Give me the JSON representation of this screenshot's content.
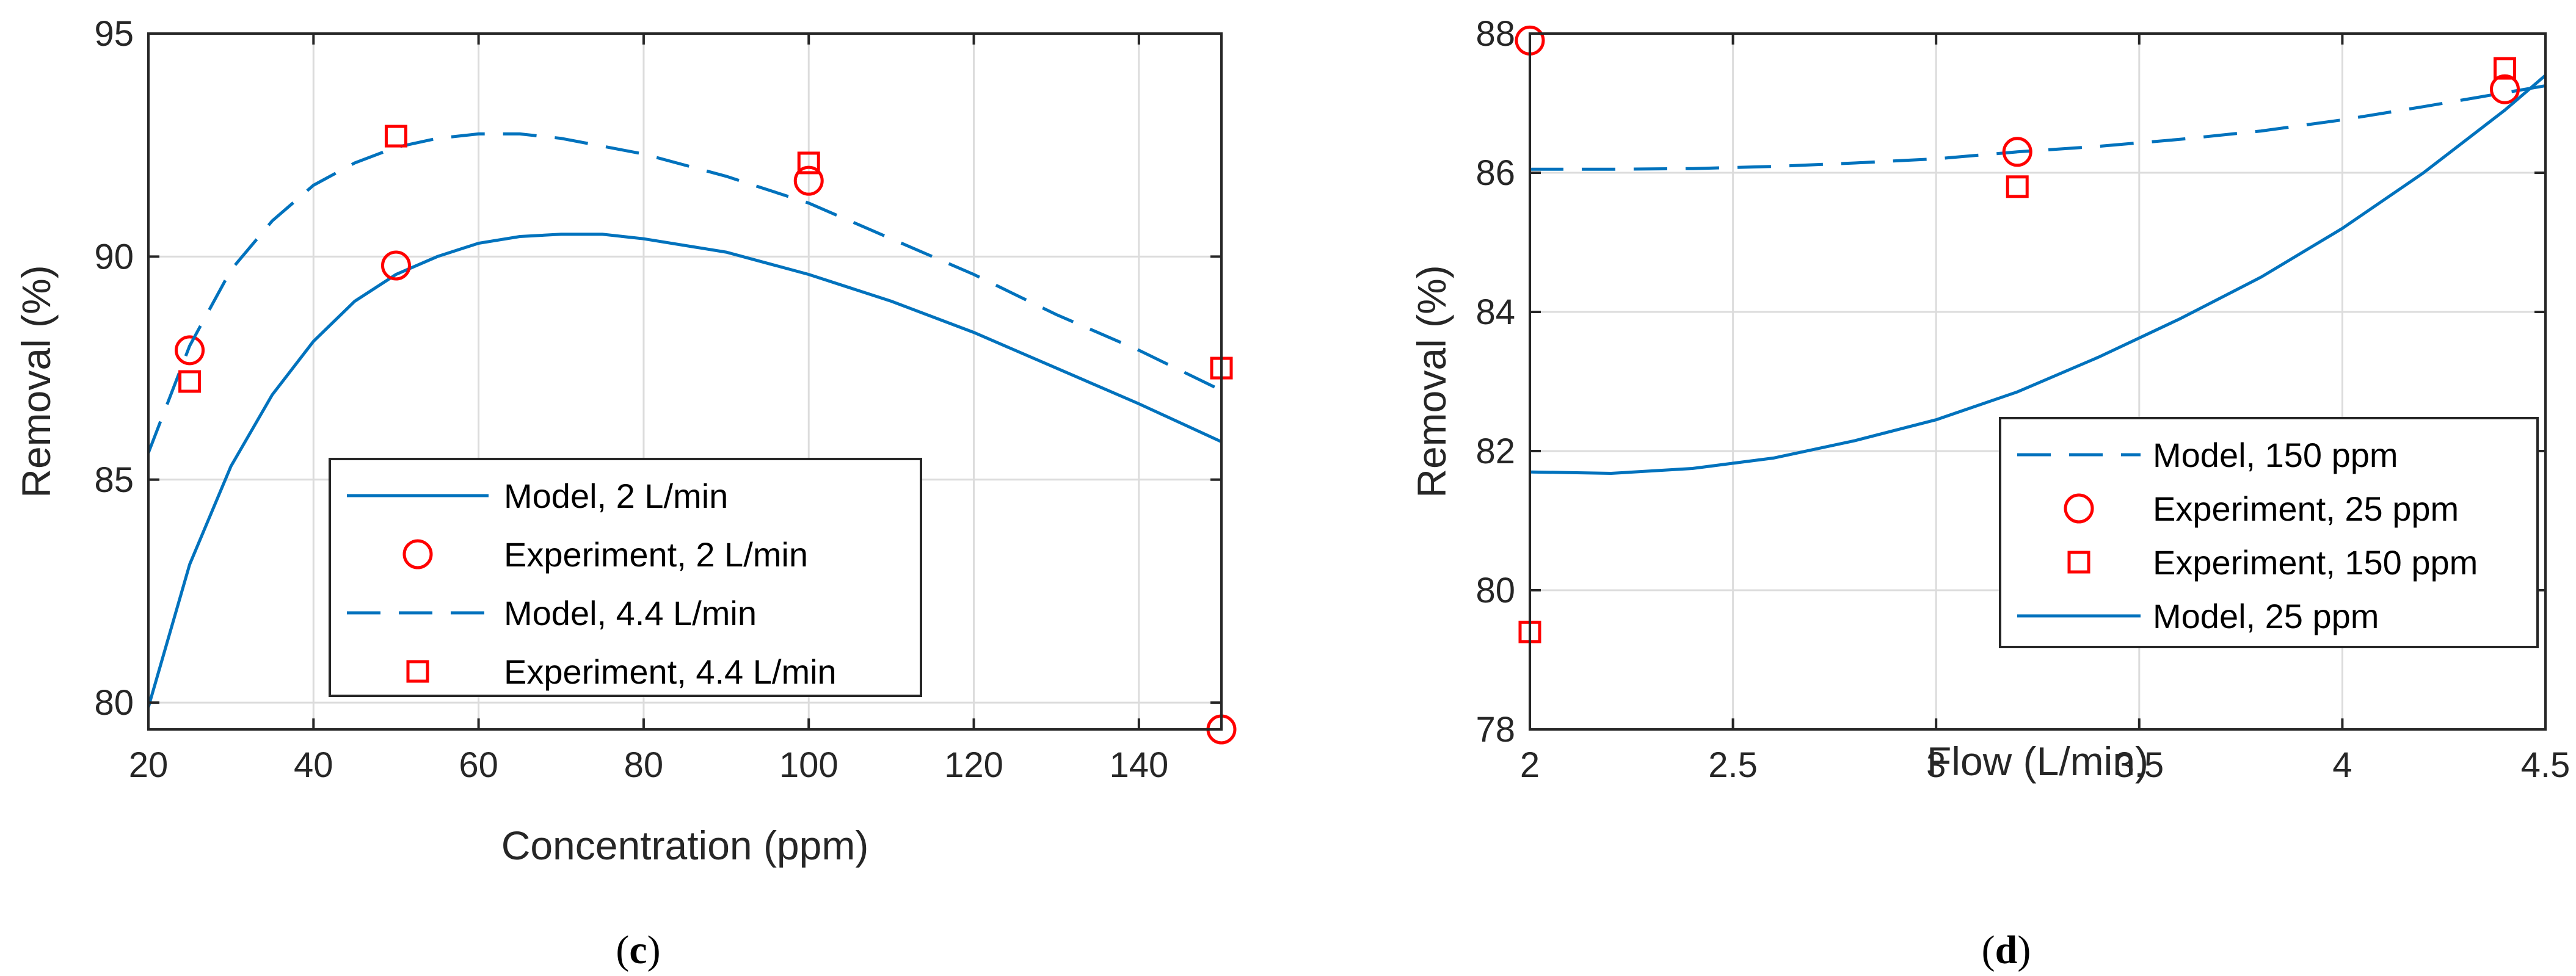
{
  "chart_data": [
    {
      "type": "line",
      "xlabel": "Concentration (ppm)",
      "ylabel": "Removal (%)",
      "xlim": [
        20,
        150
      ],
      "ylim": [
        79.4,
        95
      ],
      "xticks": [
        20,
        40,
        60,
        80,
        100,
        120,
        140
      ],
      "yticks": [
        80,
        85,
        90,
        95
      ],
      "grid": true,
      "caption": {
        "open": "(",
        "letter": "c",
        "close": ")"
      },
      "legend_position": "inside-lower-center",
      "series": [
        {
          "name": "Model, 2 L/min",
          "style": "solid-line",
          "x": [
            20,
            25,
            30,
            35,
            40,
            45,
            50,
            55,
            60,
            65,
            70,
            75,
            80,
            90,
            100,
            110,
            120,
            130,
            140,
            150
          ],
          "y": [
            79.9,
            83.1,
            85.3,
            86.9,
            88.1,
            89.0,
            89.6,
            90.0,
            90.3,
            90.45,
            90.5,
            90.5,
            90.4,
            90.1,
            89.6,
            89.0,
            88.3,
            87.5,
            86.7,
            85.85
          ]
        },
        {
          "name": "Experiment, 2 L/min",
          "style": "circle-marker",
          "x": [
            25,
            50,
            100,
            150
          ],
          "y": [
            87.9,
            89.8,
            91.7,
            79.4
          ]
        },
        {
          "name": "Model, 4.4 L/min",
          "style": "dashed-line",
          "x": [
            20,
            25,
            30,
            35,
            40,
            45,
            50,
            55,
            60,
            65,
            70,
            80,
            90,
            100,
            110,
            120,
            130,
            140,
            150
          ],
          "y": [
            85.6,
            88.0,
            89.7,
            90.8,
            91.6,
            92.1,
            92.45,
            92.65,
            92.75,
            92.75,
            92.65,
            92.3,
            91.8,
            91.2,
            90.4,
            89.6,
            88.7,
            87.9,
            87.0
          ]
        },
        {
          "name": "Experiment, 4.4 L/min",
          "style": "square-marker",
          "x": [
            25,
            50,
            100,
            150
          ],
          "y": [
            87.2,
            92.7,
            92.1,
            87.5
          ]
        }
      ],
      "legend_order": [
        0,
        1,
        2,
        3
      ]
    },
    {
      "type": "line",
      "xlabel": "Flow (L/min)",
      "ylabel": "Removal (%)",
      "xlim": [
        2,
        4.5
      ],
      "ylim": [
        78,
        88
      ],
      "xticks": [
        2,
        2.5,
        3,
        3.5,
        4,
        4.5
      ],
      "yticks": [
        78,
        80,
        82,
        84,
        86,
        88
      ],
      "grid": true,
      "caption": {
        "open": "(",
        "letter": "d",
        "close": ")"
      },
      "legend_position": "inside-lower-right",
      "series": [
        {
          "name": "Model, 150 ppm",
          "style": "dashed-line",
          "x": [
            2,
            2.2,
            2.4,
            2.6,
            2.8,
            3.0,
            3.2,
            3.4,
            3.6,
            3.8,
            4.0,
            4.2,
            4.4,
            4.5
          ],
          "y": [
            86.05,
            86.05,
            86.06,
            86.09,
            86.14,
            86.2,
            86.3,
            86.38,
            86.48,
            86.6,
            86.76,
            86.95,
            87.15,
            87.25
          ]
        },
        {
          "name": "Experiment, 25 ppm",
          "style": "circle-marker",
          "x": [
            2,
            3.2,
            4.4
          ],
          "y": [
            87.9,
            86.3,
            87.2
          ]
        },
        {
          "name": "Experiment, 150 ppm",
          "style": "square-marker",
          "x": [
            2,
            3.2,
            4.4
          ],
          "y": [
            79.4,
            85.8,
            87.5
          ]
        },
        {
          "name": "Model, 25 ppm",
          "style": "solid-line",
          "x": [
            2,
            2.2,
            2.4,
            2.6,
            2.8,
            3.0,
            3.2,
            3.4,
            3.6,
            3.8,
            4.0,
            4.2,
            4.4,
            4.5
          ],
          "y": [
            81.7,
            81.68,
            81.75,
            81.9,
            82.15,
            82.45,
            82.85,
            83.35,
            83.9,
            84.5,
            85.2,
            86.0,
            86.9,
            87.4
          ]
        }
      ],
      "legend_order": [
        0,
        1,
        2,
        3
      ]
    }
  ],
  "colors": {
    "model": "#0072BD",
    "experiment": "#FF0000",
    "axis": "#262626",
    "grid": "#DCDCDC"
  }
}
